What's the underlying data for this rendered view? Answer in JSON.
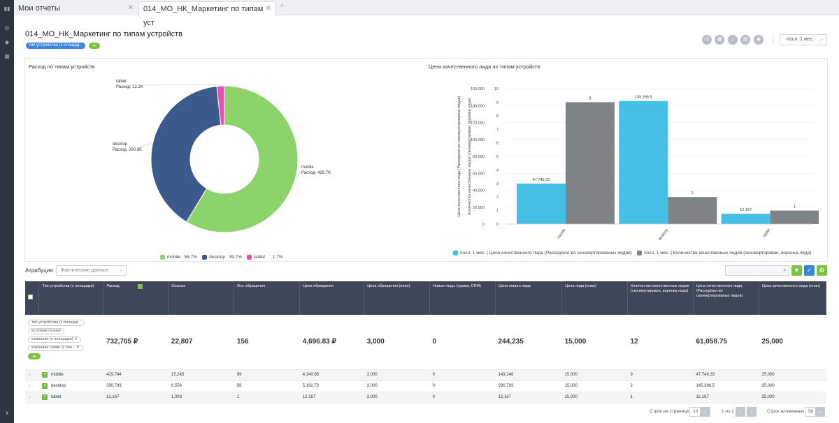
{
  "tabs": [
    {
      "label": "Мои отчеты"
    },
    {
      "label": "014_МО_НК_Маркетинг по типам уст"
    }
  ],
  "tab_add": "+",
  "report_title": "014_МО_НК_Маркетинг по типам устройств",
  "grouping_chip": "тип устройства (с площад...",
  "add_symbol": "+",
  "more_symbol": "⋮",
  "period": "посл. 1 мес.",
  "attribution": {
    "label": "Атрибуция",
    "value": "Фактические данные"
  },
  "rows_per_page": {
    "label": "Строк на странице",
    "value": "10"
  },
  "page_range": "1 из 1",
  "nested_rows": {
    "label": "Строк вложенных",
    "value": "50"
  },
  "colors": {
    "mobile": "#8dd36b",
    "desktop": "#3d5a8c",
    "tablet": "#e84fb0",
    "series1": "#45bfe6",
    "series2": "#7e8385",
    "header": "#3d4757"
  },
  "icons": {
    "toolbar": [
      "power-icon",
      "grid-icon",
      "download-icon",
      "calendar-icon",
      "eye-icon"
    ]
  },
  "table": {
    "headers": [
      "Тип устройства (с площадки)",
      "Расход",
      "Сеансы",
      "Все обращения",
      "Цена обращения",
      "Цена обращения (план)",
      "Новые лиды (сумма, CRM)",
      "Цена нового лида",
      "Цена лида (план)",
      "Количество качественных лидов (сконвертирован, воронка лида)",
      "Цена качественного лида (Расход/кол-во сконвертированых лидов)",
      "Цена качественного лида (план)"
    ],
    "groups": [
      "тип устройства (с площад...",
      "источник / канал",
      "кампания (с площадки)",
      "ключевое слово (с пло..."
    ],
    "total": [
      "732,705 ₽",
      "22,807",
      "156",
      "4,696.83 ₽",
      "3,000",
      "0",
      "244,235",
      "15,000",
      "12",
      "61,058.75",
      "25,000"
    ],
    "rows": [
      {
        "name": "mobile",
        "cells": [
          "429,744",
          "15,245",
          "99",
          "4,340.85",
          "3,000",
          "0",
          "143,246",
          "15,000",
          "9",
          "47,749.33",
          "25,000"
        ]
      },
      {
        "name": "desktop",
        "cells": [
          "290,793",
          "6,554",
          "56",
          "5,192.73",
          "3,000",
          "0",
          "290,793",
          "15,000",
          "2",
          "145,396.5",
          "25,000"
        ]
      },
      {
        "name": "tablet",
        "cells": [
          "12,167",
          "1,008",
          "1",
          "12,167",
          "3,000",
          "0",
          "12,167",
          "15,000",
          "1",
          "12,167",
          "25,000"
        ]
      }
    ]
  },
  "chart_data": [
    {
      "type": "pie",
      "title": "Расход по типам устройств",
      "labels": [
        "mobile",
        "desktop",
        "tablet"
      ],
      "values": [
        429.7,
        290.8,
        12.2
      ],
      "value_labels": [
        "Расход: 429.7K",
        "Расход: 290.8K",
        "Расход: 12.2K"
      ],
      "percent_labels": [
        "58.7%",
        "39.7%",
        "1.7%"
      ],
      "donut": true,
      "legend": "bottom"
    },
    {
      "type": "bar",
      "title": "Цена качественного лида по типам устройств",
      "categories": [
        "mobile",
        "desktop",
        "tablet"
      ],
      "series": [
        {
          "name": "посл. 1 мес. | Цена качественного лида (Расход/кол-во сконвертированых лидов)",
          "values": [
            47749.33,
            145396.5,
            12167
          ],
          "labels": [
            "47,749.33",
            "145,396.5",
            "12,167"
          ]
        },
        {
          "name": "посл. 1 мес. | Количество качественных лидов (сконвертирован, воронка лида)",
          "values": [
            9,
            2,
            1
          ],
          "labels": [
            "9",
            "2",
            "1"
          ]
        }
      ],
      "ylabel": "Цена качественного лида (Расход/кол-во сконвертированых лидов)",
      "y2label": "Количество качественных лидов (сконвертирован, воронка лида)",
      "ylim": [
        0,
        160000
      ],
      "y2lim": [
        0,
        10
      ],
      "yticks": [
        "0",
        "20,000",
        "40,000",
        "60,000",
        "80,000",
        "100,000",
        "120,000",
        "140,000",
        "160,000"
      ],
      "y2ticks": [
        "0",
        "1",
        "2",
        "3",
        "4",
        "5",
        "6",
        "7",
        "8",
        "9",
        "10"
      ],
      "grid": true,
      "legend": "bottom"
    }
  ]
}
